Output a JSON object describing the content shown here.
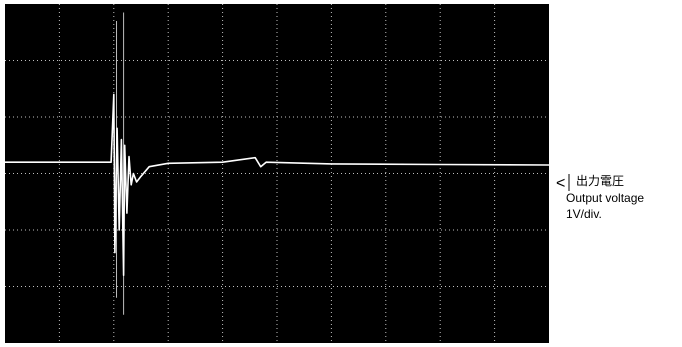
{
  "chart_data": {
    "type": "line",
    "title": "",
    "xlabel": "",
    "ylabel": "",
    "x_divisions": 10,
    "y_divisions": 6,
    "grid": true,
    "background_color": "#000000",
    "grid_color": "#bfbfbf",
    "trace_color": "#ffffff",
    "trace_level_div": 3.2,
    "series": [
      {
        "name": "",
        "x_div": [
          0,
          1.95,
          2.0,
          2.02,
          2.06,
          2.1,
          2.14,
          2.18,
          2.2,
          2.24,
          2.28,
          2.32,
          2.36,
          2.42,
          2.5,
          2.65,
          3.0,
          4.0,
          4.6,
          4.7,
          4.8,
          6.0,
          8.0,
          10.0
        ],
        "y_div": [
          3.2,
          3.2,
          4.4,
          1.6,
          3.8,
          2.0,
          3.6,
          1.2,
          3.5,
          2.3,
          3.3,
          2.8,
          3.0,
          2.85,
          2.95,
          3.12,
          3.18,
          3.2,
          3.28,
          3.12,
          3.2,
          3.17,
          3.16,
          3.15
        ]
      }
    ],
    "spikes": [
      {
        "x_div": 2.05,
        "y_top_div": 5.7,
        "y_bottom_div": 0.8
      },
      {
        "x_div": 2.18,
        "y_top_div": 5.85,
        "y_bottom_div": 0.5
      }
    ]
  },
  "annotation": {
    "marker": "<",
    "line1": "出力電圧",
    "line2": "Output voltage",
    "line3": "1V/div."
  }
}
